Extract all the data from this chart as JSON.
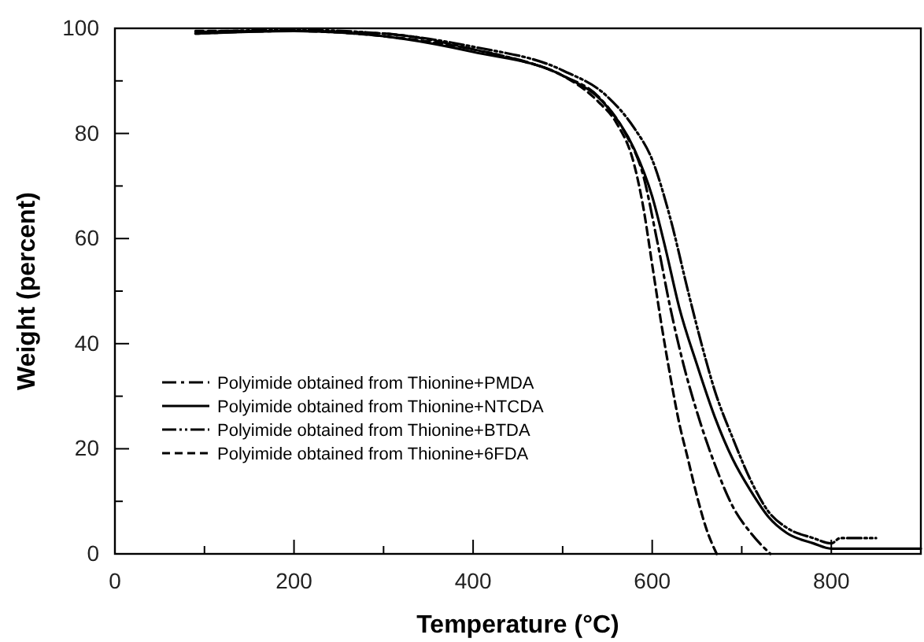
{
  "chart_data": {
    "type": "line",
    "xlabel": "Temperature (°C)",
    "ylabel": "Weight (percent)",
    "xlim": [
      0,
      900
    ],
    "ylim": [
      0,
      100
    ],
    "xticks": [
      0,
      {
        "value": 100,
        "label": null
      },
      200,
      {
        "value": 300,
        "label": null
      },
      400,
      {
        "value": 500,
        "label": null
      },
      600,
      {
        "value": 700,
        "label": null
      },
      800
    ],
    "yticks": [
      0,
      {
        "value": 10,
        "label": null
      },
      20,
      {
        "value": 30,
        "label": null
      },
      40,
      {
        "value": 50,
        "label": null
      },
      60,
      {
        "value": 70,
        "label": null
      },
      80,
      {
        "value": 90,
        "label": null
      },
      100
    ],
    "grid": false,
    "legend": "left",
    "marker": "none",
    "series": [
      {
        "name": "Polyimide obtained from Thionine+PMDA",
        "color": "#000000",
        "line_style": "dashdot",
        "x": [
          90,
          200,
          300,
          400,
          500,
          540,
          570,
          590,
          605,
          620,
          635,
          650,
          670,
          690,
          710,
          732
        ],
        "values": [
          99,
          99.5,
          99,
          96,
          91,
          87,
          80,
          72,
          60,
          47,
          36,
          27,
          17,
          9,
          4,
          0
        ]
      },
      {
        "name": "Polyimide obtained from Thionine+NTCDA",
        "color": "#000000",
        "line_style": "solid",
        "x": [
          90,
          200,
          300,
          400,
          500,
          550,
          580,
          600,
          615,
          630,
          650,
          670,
          690,
          710,
          730,
          750,
          780,
          800,
          900
        ],
        "values": [
          99,
          99.5,
          98.5,
          95.5,
          91,
          85,
          77,
          68,
          58,
          47,
          36,
          26,
          18,
          12,
          7,
          4,
          2,
          1,
          1
        ]
      },
      {
        "name": "Polyimide obtained from Thionine+BTDA",
        "color": "#000000",
        "line_style": "dashdotdot",
        "x": [
          90,
          200,
          300,
          400,
          500,
          550,
          580,
          600,
          620,
          640,
          655,
          670,
          690,
          710,
          730,
          750,
          780,
          800,
          810,
          850
        ],
        "values": [
          99.3,
          99.7,
          99,
          96.5,
          92,
          87,
          81,
          75,
          64,
          50,
          40,
          31,
          22,
          14,
          8,
          5,
          3,
          2,
          3,
          3
        ]
      },
      {
        "name": "Polyimide obtained from Thionine+6FDA",
        "color": "#000000",
        "line_style": "dashed",
        "x": [
          90,
          200,
          300,
          400,
          450,
          500,
          540,
          560,
          580,
          590,
          600,
          610,
          620,
          630,
          640,
          650,
          660,
          672
        ],
        "values": [
          99.5,
          99.5,
          98.5,
          96,
          94,
          91,
          86,
          82,
          74,
          66,
          55,
          44,
          34,
          25,
          18,
          11,
          5,
          0
        ]
      }
    ]
  }
}
